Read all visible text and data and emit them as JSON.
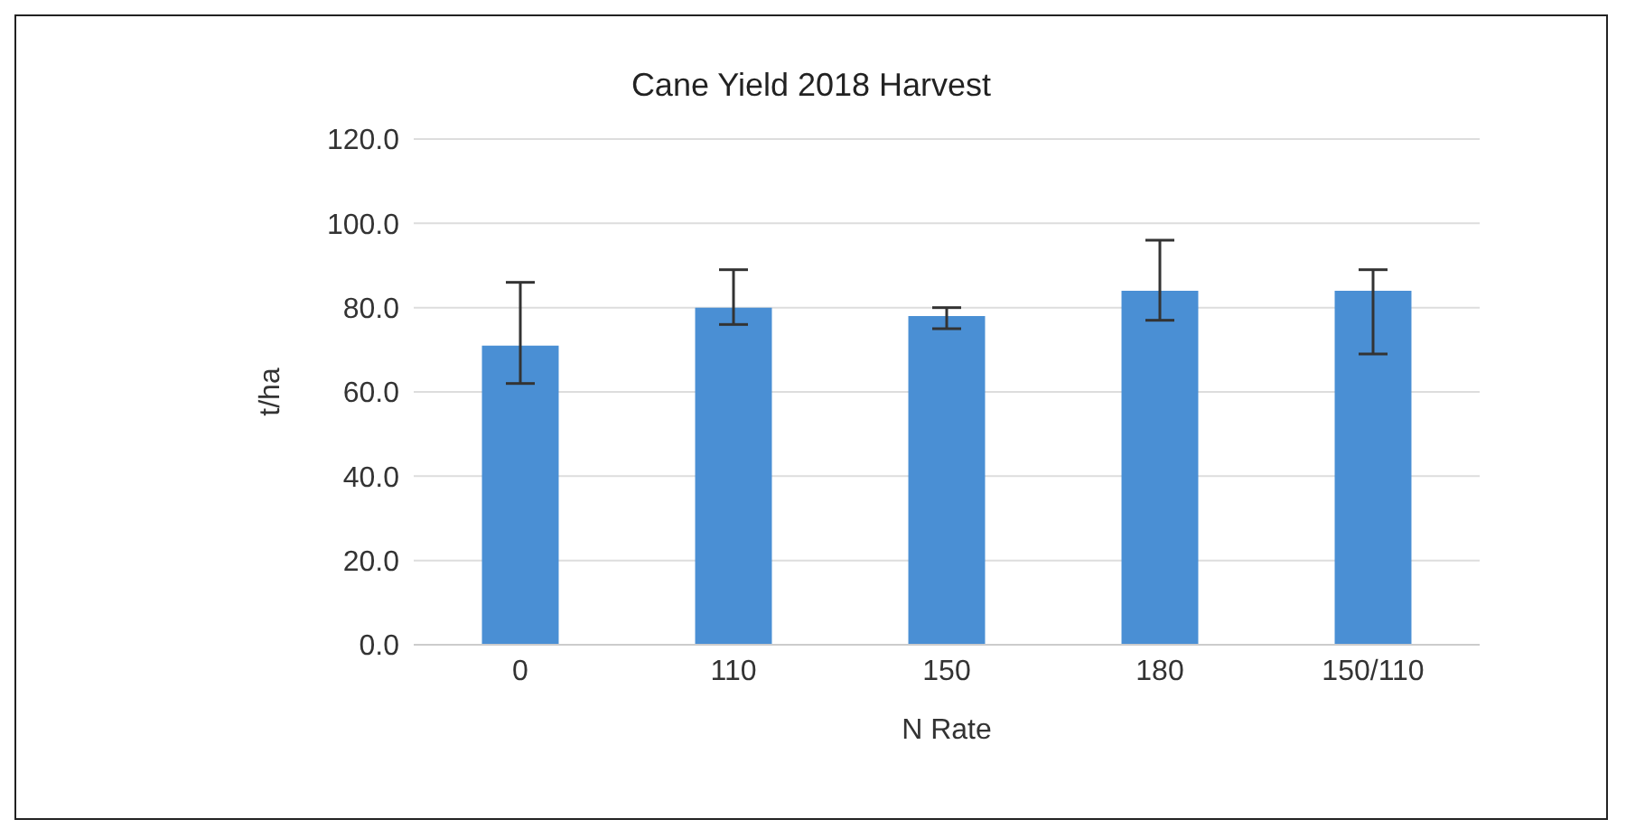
{
  "chart_data": {
    "type": "bar",
    "title": "Cane Yield 2018 Harvest",
    "xlabel": "N Rate",
    "ylabel": "t/ha",
    "categories": [
      "0",
      "110",
      "150",
      "180",
      "150/110"
    ],
    "values": [
      71,
      80,
      78,
      84,
      84
    ],
    "errors": [
      [
        62,
        86
      ],
      [
        76,
        89
      ],
      [
        75,
        80
      ],
      [
        77,
        96
      ],
      [
        69,
        89
      ]
    ],
    "color": "#4a8fd4",
    "ylim": [
      0,
      120
    ],
    "yticks": [
      {
        "value": 0,
        "label": "0.0"
      },
      {
        "value": 20,
        "label": "20.0"
      },
      {
        "value": 40,
        "label": "40.0"
      },
      {
        "value": 60,
        "label": "60.0"
      },
      {
        "value": 80,
        "label": "80.0"
      },
      {
        "value": 100,
        "label": "100.0"
      },
      {
        "value": 120,
        "label": "120.0"
      }
    ],
    "grid": "y"
  }
}
